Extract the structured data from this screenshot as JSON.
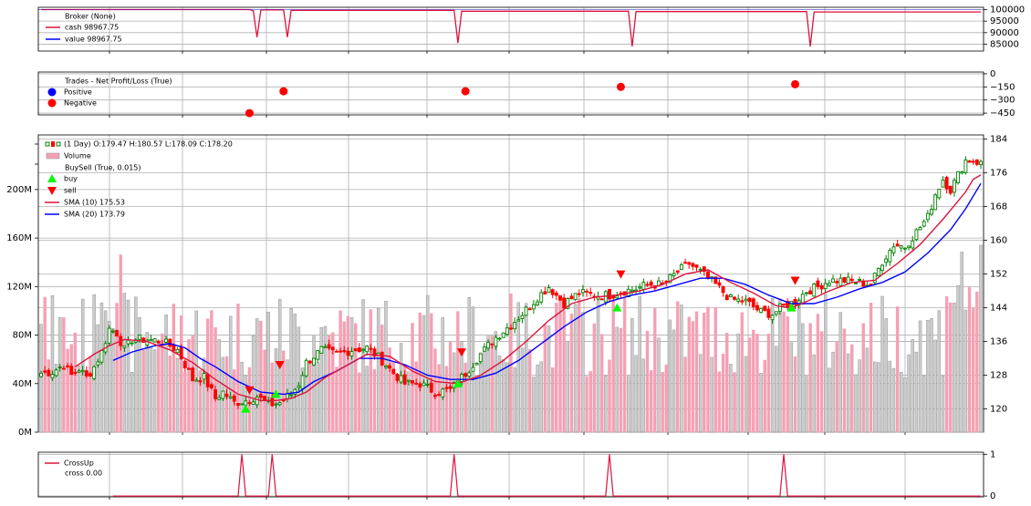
{
  "colors": {
    "broker": "#dc143c",
    "value_line": "#0000ff",
    "trades_pos": "#0000ff",
    "trades_neg": "#ff0000",
    "candle_up": "#008000",
    "candle_down": "#ff0000",
    "volume_up": "#cccccc",
    "volume_down": "#f5a0b4",
    "buy_marker": "#00ff00",
    "sell_marker": "#ff0000",
    "sma10": "#dc143c",
    "sma20": "#0000ff",
    "crossup": "#dc143c",
    "grid": "#b0b0b0"
  },
  "chart_data": [
    {
      "type": "line",
      "panel": "broker",
      "legend": [
        "Broker (None)",
        "cash 98967.75",
        "value 98967.75"
      ],
      "yticks": [
        "100000",
        "95000",
        "90000",
        "85000"
      ],
      "ylim": [
        82000,
        101000
      ],
      "x": [
        0,
        55,
        56,
        57,
        58,
        59,
        60,
        64,
        65,
        66,
        109,
        110,
        111,
        115,
        155,
        156,
        157,
        161,
        202,
        203,
        204,
        208,
        247,
        248
      ],
      "values": [
        100000,
        100000,
        99550,
        88000,
        99800,
        99850,
        99900,
        99900,
        88000,
        99700,
        99700,
        85500,
        99300,
        99300,
        99300,
        84000,
        99150,
        99150,
        99150,
        84000,
        98970,
        98970,
        98968,
        98968
      ],
      "series": [
        {
          "name": "cash"
        },
        {
          "name": "value"
        }
      ]
    },
    {
      "type": "scatter",
      "panel": "trades",
      "legend": [
        "Trades - Net Profit/Loss (True)",
        "Positive",
        "Negative"
      ],
      "yticks": [
        "0",
        "−150",
        "−300",
        "−450"
      ],
      "ylim": [
        -470,
        20
      ],
      "x": [
        55,
        64,
        112,
        153,
        199
      ],
      "values": [
        -450,
        -200,
        -200,
        -150,
        -120
      ]
    },
    {
      "type": "candlestick",
      "panel": "price",
      "legend": [
        "(1 Day) O:179.47 H:180.57 L:178.09 C:178.20",
        "Volume",
        "BuySell (True, 0.015)",
        "buy",
        "sell",
        "SMA (10) 175.53",
        "SMA (20) 173.79"
      ],
      "yticks_right": [
        "184",
        "176",
        "168",
        "160",
        "152",
        "144",
        "136",
        "128",
        "120"
      ],
      "ylim": [
        114.5,
        185
      ],
      "volume_ticks": [
        "200M",
        "160M",
        "120M",
        "80M",
        "40M",
        "0M"
      ],
      "volume_ylim": [
        0,
        245
      ],
      "close_path": [
        [
          0,
          128.5
        ],
        [
          3,
          128.8
        ],
        [
          6,
          130.5
        ],
        [
          8,
          128.0
        ],
        [
          10,
          129.5
        ],
        [
          12,
          127.5
        ],
        [
          14,
          130.0
        ],
        [
          16,
          133.5
        ],
        [
          18,
          139.0
        ],
        [
          20,
          138.0
        ],
        [
          22,
          134.0
        ],
        [
          24,
          136.5
        ],
        [
          28,
          136.5
        ],
        [
          32,
          136.0
        ],
        [
          36,
          134.0
        ],
        [
          40,
          127.0
        ],
        [
          43,
          127.5
        ],
        [
          46,
          122.5
        ],
        [
          48,
          124.0
        ],
        [
          51,
          121.5
        ],
        [
          54,
          122.0
        ],
        [
          57,
          123.0
        ],
        [
          60,
          121.0
        ],
        [
          63,
          121.5
        ],
        [
          66,
          123.5
        ],
        [
          68,
          126.0
        ],
        [
          70,
          131.0
        ],
        [
          74,
          134.0
        ],
        [
          78,
          133.0
        ],
        [
          82,
          134.0
        ],
        [
          86,
          134.5
        ],
        [
          90,
          131.5
        ],
        [
          93,
          128.5
        ],
        [
          96,
          126.0
        ],
        [
          100,
          126.0
        ],
        [
          104,
          124.0
        ],
        [
          108,
          124.5
        ],
        [
          112,
          128.5
        ],
        [
          116,
          133.0
        ],
        [
          120,
          137.0
        ],
        [
          124,
          140.0
        ],
        [
          128,
          143.5
        ],
        [
          131,
          146.5
        ],
        [
          134,
          149.0
        ],
        [
          138,
          145.0
        ],
        [
          142,
          147.5
        ],
        [
          146,
          147.0
        ],
        [
          150,
          147.0
        ],
        [
          154,
          148.0
        ],
        [
          157,
          148.5
        ],
        [
          160,
          149.5
        ],
        [
          164,
          149.5
        ],
        [
          168,
          152.5
        ],
        [
          171,
          154.5
        ],
        [
          174,
          152.5
        ],
        [
          178,
          149.5
        ],
        [
          182,
          146.0
        ],
        [
          186,
          145.5
        ],
        [
          190,
          143.0
        ],
        [
          193,
          142.5
        ],
        [
          196,
          144.5
        ],
        [
          199,
          145.5
        ],
        [
          202,
          148.0
        ],
        [
          205,
          149.0
        ],
        [
          208,
          150.5
        ],
        [
          212,
          150.5
        ],
        [
          216,
          150.0
        ],
        [
          219,
          149.5
        ],
        [
          222,
          155.0
        ],
        [
          225,
          159.0
        ],
        [
          228,
          158.5
        ],
        [
          231,
          162.0
        ],
        [
          234,
          165.5
        ],
        [
          236,
          171.0
        ],
        [
          238,
          174.5
        ],
        [
          240,
          172.0
        ],
        [
          242,
          175.5
        ],
        [
          244,
          179.0
        ],
        [
          246,
          179.0
        ],
        [
          248,
          178.2
        ]
      ],
      "sma10": [
        [
          9,
          130.0
        ],
        [
          14,
          133.0
        ],
        [
          18,
          135.0
        ],
        [
          22,
          136.5
        ],
        [
          28,
          136.0
        ],
        [
          34,
          134.0
        ],
        [
          40,
          131.0
        ],
        [
          46,
          127.0
        ],
        [
          52,
          123.5
        ],
        [
          58,
          122.0
        ],
        [
          62,
          122.0
        ],
        [
          66,
          122.5
        ],
        [
          70,
          124.0
        ],
        [
          75,
          127.5
        ],
        [
          80,
          130.0
        ],
        [
          86,
          133.0
        ],
        [
          92,
          132.5
        ],
        [
          98,
          129.0
        ],
        [
          104,
          126.5
        ],
        [
          110,
          126.0
        ],
        [
          116,
          128.0
        ],
        [
          122,
          131.5
        ],
        [
          128,
          136.0
        ],
        [
          134,
          141.0
        ],
        [
          140,
          145.0
        ],
        [
          146,
          146.5
        ],
        [
          152,
          147.0
        ],
        [
          158,
          148.0
        ],
        [
          164,
          149.5
        ],
        [
          170,
          152.0
        ],
        [
          176,
          153.0
        ],
        [
          182,
          150.0
        ],
        [
          188,
          147.5
        ],
        [
          194,
          144.5
        ],
        [
          198,
          144.0
        ],
        [
          202,
          145.5
        ],
        [
          208,
          148.0
        ],
        [
          214,
          150.0
        ],
        [
          220,
          150.5
        ],
        [
          226,
          154.5
        ],
        [
          232,
          159.0
        ],
        [
          238,
          165.0
        ],
        [
          244,
          171.5
        ],
        [
          246,
          174.5
        ],
        [
          248,
          175.5
        ]
      ],
      "sma20": [
        [
          19,
          131.5
        ],
        [
          24,
          133.5
        ],
        [
          30,
          135.0
        ],
        [
          34,
          135.5
        ],
        [
          38,
          134.5
        ],
        [
          42,
          132.0
        ],
        [
          46,
          130.0
        ],
        [
          52,
          126.5
        ],
        [
          58,
          124.0
        ],
        [
          64,
          123.5
        ],
        [
          68,
          124.0
        ],
        [
          72,
          126.5
        ],
        [
          78,
          129.0
        ],
        [
          84,
          132.0
        ],
        [
          90,
          132.0
        ],
        [
          96,
          130.5
        ],
        [
          102,
          128.0
        ],
        [
          108,
          127.0
        ],
        [
          114,
          127.0
        ],
        [
          120,
          128.5
        ],
        [
          126,
          131.5
        ],
        [
          132,
          135.5
        ],
        [
          138,
          139.5
        ],
        [
          144,
          143.0
        ],
        [
          150,
          145.5
        ],
        [
          156,
          147.0
        ],
        [
          162,
          148.0
        ],
        [
          168,
          149.5
        ],
        [
          174,
          151.0
        ],
        [
          180,
          151.0
        ],
        [
          186,
          149.5
        ],
        [
          192,
          147.0
        ],
        [
          198,
          145.0
        ],
        [
          204,
          145.0
        ],
        [
          210,
          146.5
        ],
        [
          216,
          148.5
        ],
        [
          222,
          150.0
        ],
        [
          228,
          152.5
        ],
        [
          234,
          157.0
        ],
        [
          240,
          162.5
        ],
        [
          244,
          167.5
        ],
        [
          248,
          173.5
        ]
      ],
      "buy_signals": [
        [
          54,
          120.0
        ],
        [
          62,
          123.5
        ],
        [
          110,
          126.0
        ],
        [
          152,
          144.0
        ],
        [
          198,
          144.0
        ]
      ],
      "sell_signals": [
        [
          55,
          124.5
        ],
        [
          63,
          130.5
        ],
        [
          111,
          133.5
        ],
        [
          153,
          152.0
        ],
        [
          199,
          150.5
        ]
      ]
    },
    {
      "type": "line",
      "panel": "crossup",
      "legend": [
        "CrossUp",
        "cross 0.00"
      ],
      "yticks": [
        "1",
        "0"
      ],
      "ylim": [
        0,
        1
      ],
      "spikes": [
        53,
        61,
        109,
        150,
        196
      ]
    }
  ]
}
